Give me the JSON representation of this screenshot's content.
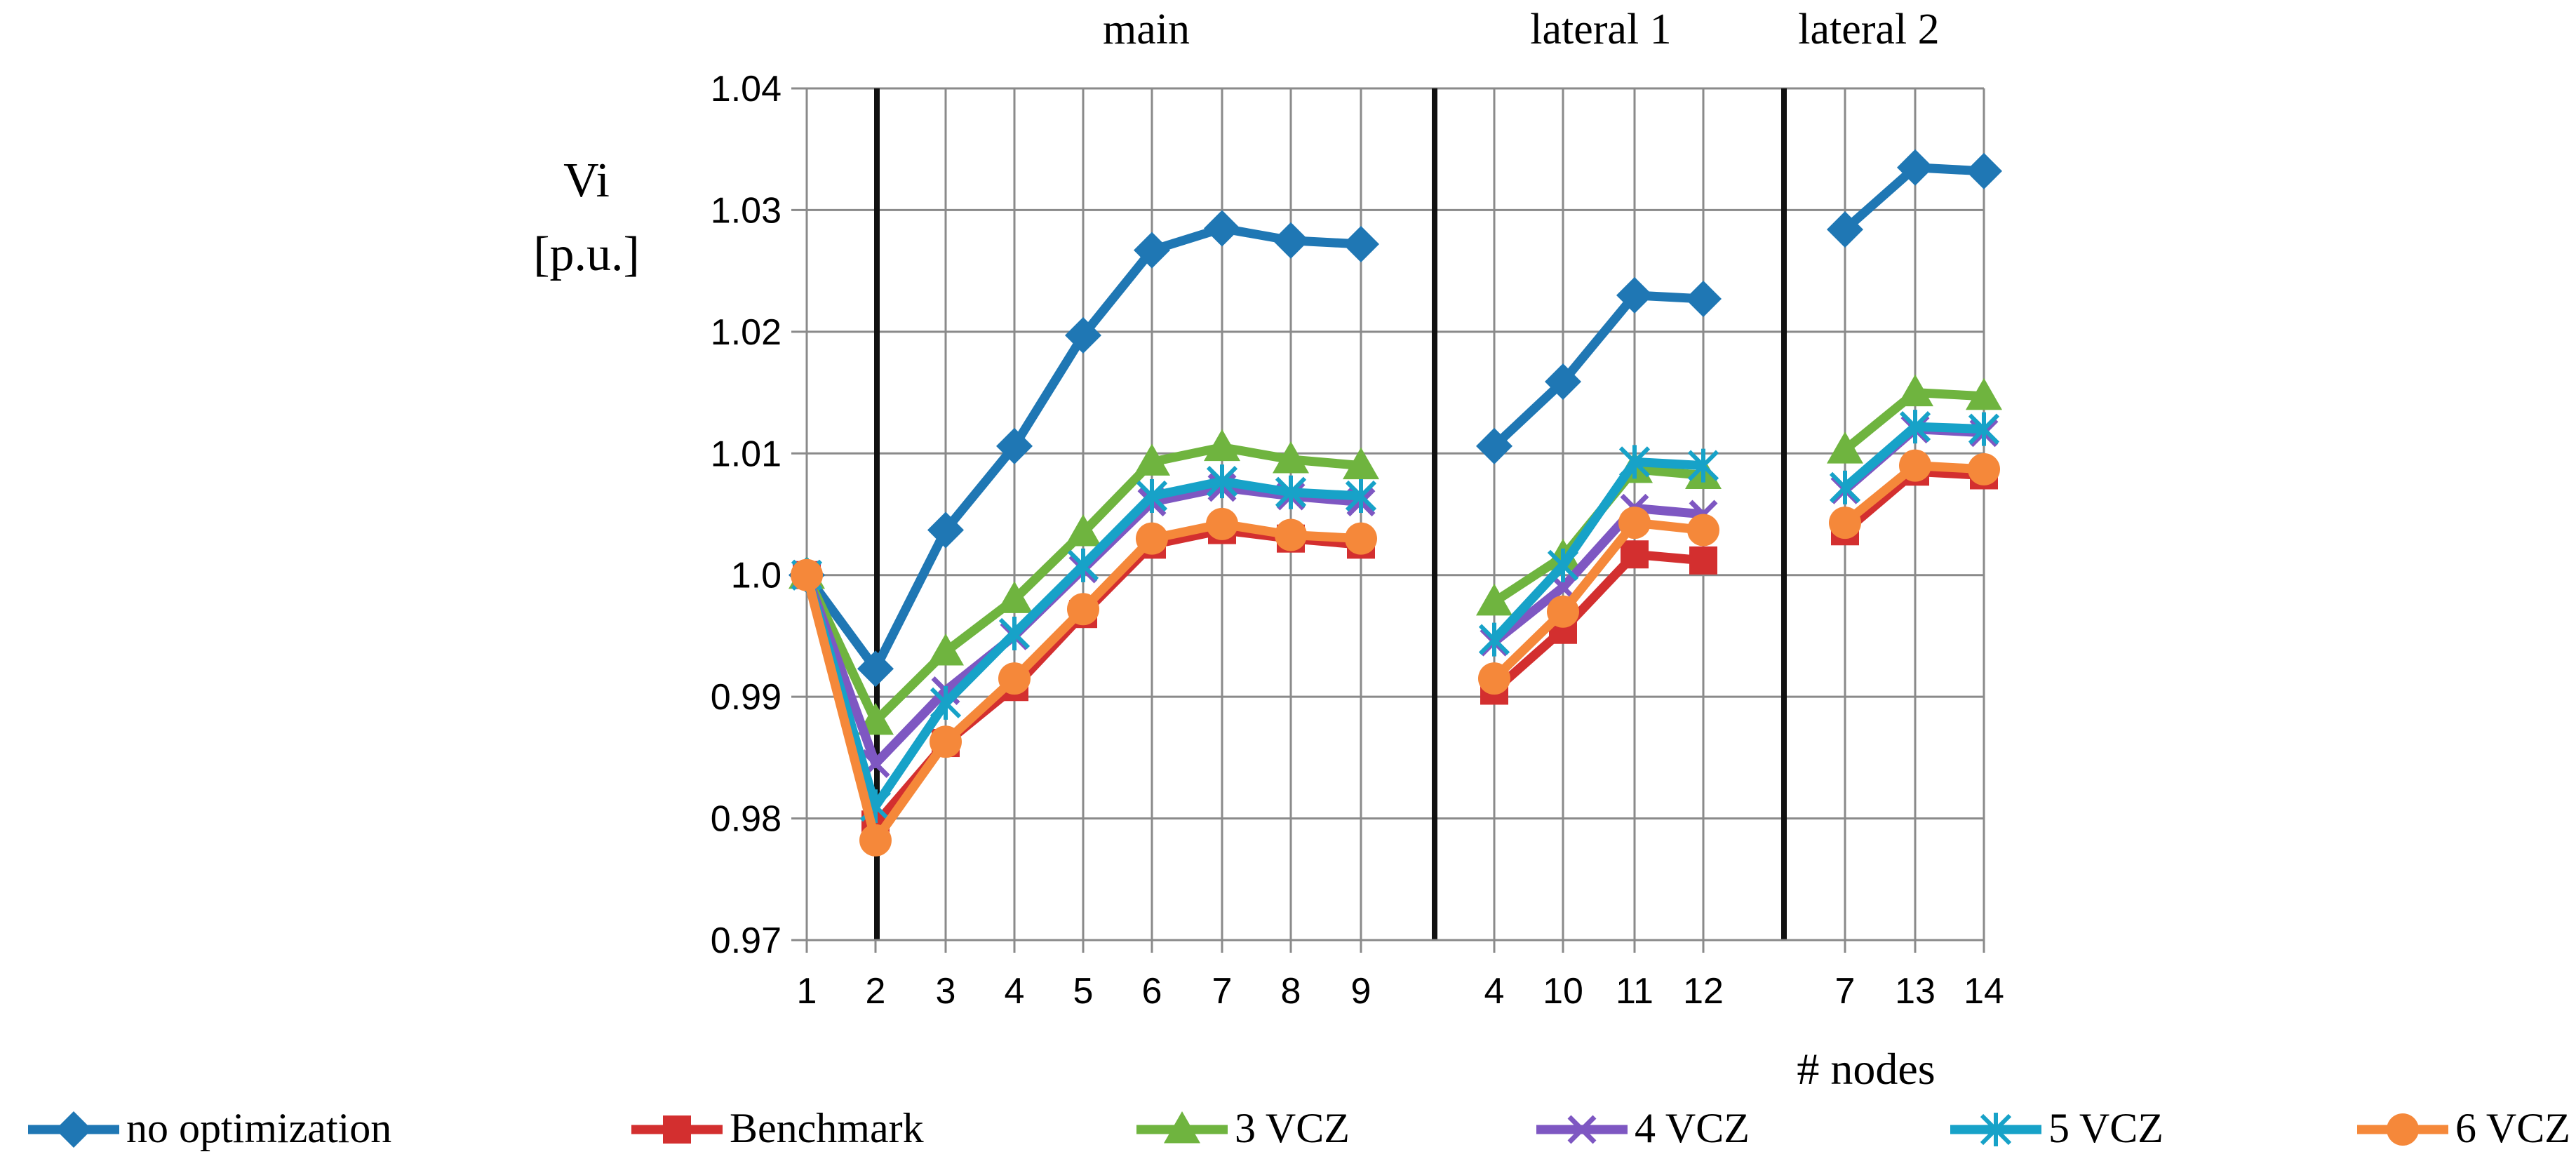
{
  "chart_data": {
    "type": "line",
    "ylabel_line1": "Vi",
    "ylabel_line2": "[p.u.]",
    "xlabel": "# nodes",
    "ylim": [
      0.97,
      1.04
    ],
    "yticks": [
      "1.04",
      "1.03",
      "1.02",
      "1.01",
      "1.0",
      "0.99",
      "0.98",
      "0.97"
    ],
    "ytick_values": [
      1.04,
      1.03,
      1.02,
      1.01,
      1.0,
      0.99,
      0.98,
      0.97
    ],
    "sections": [
      {
        "name": "main",
        "categories": [
          "1",
          "2",
          "3",
          "4",
          "5",
          "6",
          "7",
          "8",
          "9"
        ]
      },
      {
        "name": "lateral 1",
        "categories": [
          "4",
          "10",
          "11",
          "12"
        ]
      },
      {
        "name": "lateral 2",
        "categories": [
          "7",
          "13",
          "14"
        ]
      }
    ],
    "series": [
      {
        "name": "no optimization",
        "color": "#1F77B4",
        "marker": "diamond",
        "values": [
          [
            1.0,
            0.9923,
            1.0037,
            1.0106,
            1.0197,
            1.0267,
            1.0285,
            1.0275,
            1.0272
          ],
          [
            1.0106,
            1.0159,
            1.023,
            1.0227
          ],
          [
            1.0284,
            1.0335,
            1.0332
          ]
        ]
      },
      {
        "name": "Benchmark",
        "color": "#D32F2F",
        "marker": "square",
        "values": [
          [
            1.0,
            0.9795,
            0.9862,
            0.9908,
            0.9968,
            1.0025,
            1.0037,
            1.003,
            1.0025
          ],
          [
            0.9905,
            0.9955,
            1.0017,
            1.0012
          ],
          [
            1.0036,
            1.0085,
            1.0082
          ]
        ]
      },
      {
        "name": "3 VCZ",
        "color": "#6FB43F",
        "marker": "triangle",
        "values": [
          [
            1.0,
            0.988,
            0.9937,
            0.998,
            1.0035,
            1.0093,
            1.0105,
            1.0095,
            1.009
          ],
          [
            0.9978,
            1.0015,
            1.0087,
            1.0082
          ],
          [
            1.0103,
            1.015,
            1.0147
          ]
        ]
      },
      {
        "name": "4 VCZ",
        "color": "#7E57C2",
        "marker": "x",
        "values": [
          [
            1.0,
            0.9845,
            0.9905,
            0.995,
            1.0005,
            1.006,
            1.0072,
            1.0065,
            1.006
          ],
          [
            0.9945,
            0.999,
            1.0055,
            1.005
          ],
          [
            1.007,
            1.012,
            1.0117
          ]
        ]
      },
      {
        "name": "5 VCZ",
        "color": "#17A2C8",
        "marker": "star",
        "values": [
          [
            1.0,
            0.981,
            0.9895,
            0.9952,
            1.0008,
            1.0065,
            1.0077,
            1.0068,
            1.0065
          ],
          [
            0.9947,
            1.0008,
            1.0093,
            1.009
          ],
          [
            1.0072,
            1.0122,
            1.012
          ]
        ]
      },
      {
        "name": "6 VCZ",
        "color": "#F5883A",
        "marker": "circle",
        "values": [
          [
            1.0,
            0.9782,
            0.9863,
            0.9915,
            0.9972,
            1.003,
            1.0042,
            1.0033,
            1.003
          ],
          [
            0.9915,
            0.997,
            1.0043,
            1.0037
          ],
          [
            1.0043,
            1.009,
            1.0087
          ]
        ]
      }
    ]
  }
}
